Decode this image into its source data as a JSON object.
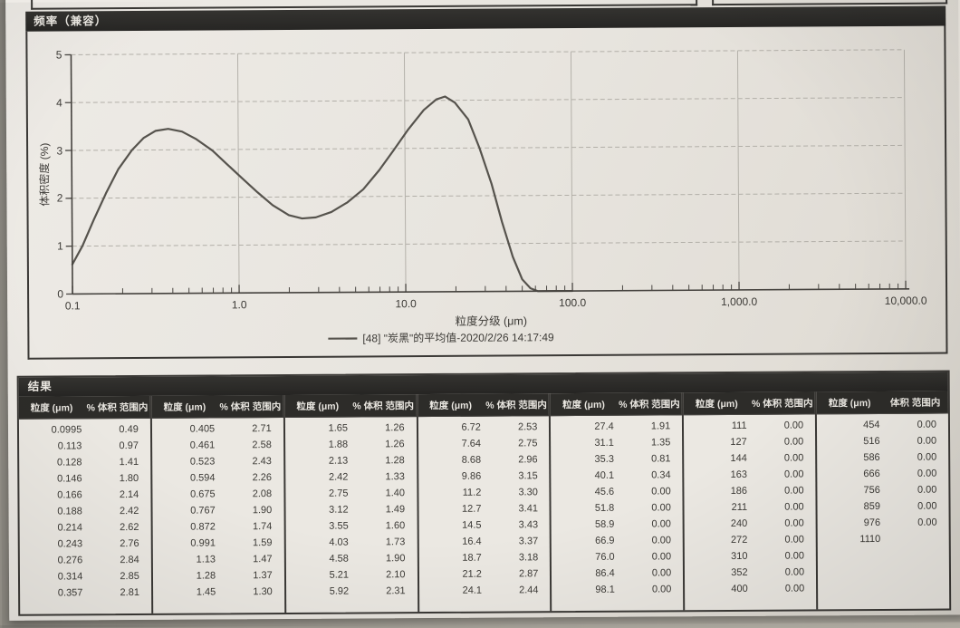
{
  "chart_panel": {
    "title": "频率（兼容）"
  },
  "chart_data": {
    "type": "line",
    "title": "频率（兼容）",
    "xlabel": "粒度分级 (μm)",
    "ylabel": "体积密度 (%)",
    "x_scale": "log",
    "xlim": [
      0.1,
      10000
    ],
    "ylim": [
      0,
      5
    ],
    "grid": true,
    "legend_position": "bottom",
    "x_tick_values": [
      0.1,
      1,
      10,
      100,
      1000,
      10000
    ],
    "x_tick_labels": [
      "0.1",
      "1.0",
      "10.0",
      "100.0",
      "1,000.0",
      "10,000.0"
    ],
    "y_tick_values": [
      0,
      1,
      2,
      3,
      4,
      5
    ],
    "y_tick_labels": [
      "0",
      "1",
      "2",
      "3",
      "4",
      "5"
    ],
    "series": [
      {
        "name": "[48] \"炭黑\"的平均值-2020/2/26 14:17:49",
        "points": [
          [
            0.1,
            0.62
          ],
          [
            0.115,
            1.0
          ],
          [
            0.135,
            1.55
          ],
          [
            0.16,
            2.1
          ],
          [
            0.19,
            2.6
          ],
          [
            0.23,
            3.0
          ],
          [
            0.27,
            3.25
          ],
          [
            0.32,
            3.4
          ],
          [
            0.38,
            3.44
          ],
          [
            0.46,
            3.38
          ],
          [
            0.56,
            3.22
          ],
          [
            0.7,
            2.98
          ],
          [
            0.85,
            2.7
          ],
          [
            1.05,
            2.4
          ],
          [
            1.3,
            2.1
          ],
          [
            1.6,
            1.83
          ],
          [
            2.0,
            1.62
          ],
          [
            2.4,
            1.55
          ],
          [
            2.9,
            1.57
          ],
          [
            3.6,
            1.68
          ],
          [
            4.5,
            1.88
          ],
          [
            5.6,
            2.15
          ],
          [
            7.0,
            2.55
          ],
          [
            8.5,
            2.95
          ],
          [
            10.5,
            3.4
          ],
          [
            13,
            3.8
          ],
          [
            15.5,
            4.02
          ],
          [
            17.5,
            4.08
          ],
          [
            20,
            3.95
          ],
          [
            24,
            3.6
          ],
          [
            28,
            3.0
          ],
          [
            33,
            2.25
          ],
          [
            38,
            1.45
          ],
          [
            44,
            0.72
          ],
          [
            50,
            0.25
          ],
          [
            56,
            0.06
          ],
          [
            62,
            0.0
          ],
          [
            80,
            0.0
          ],
          [
            100,
            0.0
          ]
        ]
      }
    ]
  },
  "results_table": {
    "title": "结果",
    "col_size_header": "粒度 (μm)",
    "col_pct_header": "% 体积 范围内",
    "col_pct_header_last": "体积 范围内",
    "groups": [
      {
        "rows": [
          [
            "0.0995",
            "0.49"
          ],
          [
            "0.113",
            "0.97"
          ],
          [
            "0.128",
            "1.41"
          ],
          [
            "0.146",
            "1.80"
          ],
          [
            "0.166",
            "2.14"
          ],
          [
            "0.188",
            "2.42"
          ],
          [
            "0.214",
            "2.62"
          ],
          [
            "0.243",
            "2.76"
          ],
          [
            "0.276",
            "2.84"
          ],
          [
            "0.314",
            "2.85"
          ],
          [
            "0.357",
            "2.81"
          ]
        ]
      },
      {
        "rows": [
          [
            "0.405",
            "2.71"
          ],
          [
            "0.461",
            "2.58"
          ],
          [
            "0.523",
            "2.43"
          ],
          [
            "0.594",
            "2.26"
          ],
          [
            "0.675",
            "2.08"
          ],
          [
            "0.767",
            "1.90"
          ],
          [
            "0.872",
            "1.74"
          ],
          [
            "0.991",
            "1.59"
          ],
          [
            "1.13",
            "1.47"
          ],
          [
            "1.28",
            "1.37"
          ],
          [
            "1.45",
            "1.30"
          ]
        ]
      },
      {
        "rows": [
          [
            "1.65",
            "1.26"
          ],
          [
            "1.88",
            "1.26"
          ],
          [
            "2.13",
            "1.28"
          ],
          [
            "2.42",
            "1.33"
          ],
          [
            "2.75",
            "1.40"
          ],
          [
            "3.12",
            "1.49"
          ],
          [
            "3.55",
            "1.60"
          ],
          [
            "4.03",
            "1.73"
          ],
          [
            "4.58",
            "1.90"
          ],
          [
            "5.21",
            "2.10"
          ],
          [
            "5.92",
            "2.31"
          ]
        ]
      },
      {
        "rows": [
          [
            "6.72",
            "2.53"
          ],
          [
            "7.64",
            "2.75"
          ],
          [
            "8.68",
            "2.96"
          ],
          [
            "9.86",
            "3.15"
          ],
          [
            "11.2",
            "3.30"
          ],
          [
            "12.7",
            "3.41"
          ],
          [
            "14.5",
            "3.43"
          ],
          [
            "16.4",
            "3.37"
          ],
          [
            "18.7",
            "3.18"
          ],
          [
            "21.2",
            "2.87"
          ],
          [
            "24.1",
            "2.44"
          ]
        ]
      },
      {
        "rows": [
          [
            "27.4",
            "1.91"
          ],
          [
            "31.1",
            "1.35"
          ],
          [
            "35.3",
            "0.81"
          ],
          [
            "40.1",
            "0.34"
          ],
          [
            "45.6",
            "0.00"
          ],
          [
            "51.8",
            "0.00"
          ],
          [
            "58.9",
            "0.00"
          ],
          [
            "66.9",
            "0.00"
          ],
          [
            "76.0",
            "0.00"
          ],
          [
            "86.4",
            "0.00"
          ],
          [
            "98.1",
            "0.00"
          ]
        ]
      },
      {
        "rows": [
          [
            "111",
            "0.00"
          ],
          [
            "127",
            "0.00"
          ],
          [
            "144",
            "0.00"
          ],
          [
            "163",
            "0.00"
          ],
          [
            "186",
            "0.00"
          ],
          [
            "211",
            "0.00"
          ],
          [
            "240",
            "0.00"
          ],
          [
            "272",
            "0.00"
          ],
          [
            "310",
            "0.00"
          ],
          [
            "352",
            "0.00"
          ],
          [
            "400",
            "0.00"
          ]
        ]
      },
      {
        "rows": [
          [
            "454",
            "0.00"
          ],
          [
            "516",
            "0.00"
          ],
          [
            "586",
            "0.00"
          ],
          [
            "666",
            "0.00"
          ],
          [
            "756",
            "0.00"
          ],
          [
            "859",
            "0.00"
          ],
          [
            "976",
            "0.00"
          ],
          [
            "1110",
            ""
          ]
        ]
      }
    ]
  }
}
